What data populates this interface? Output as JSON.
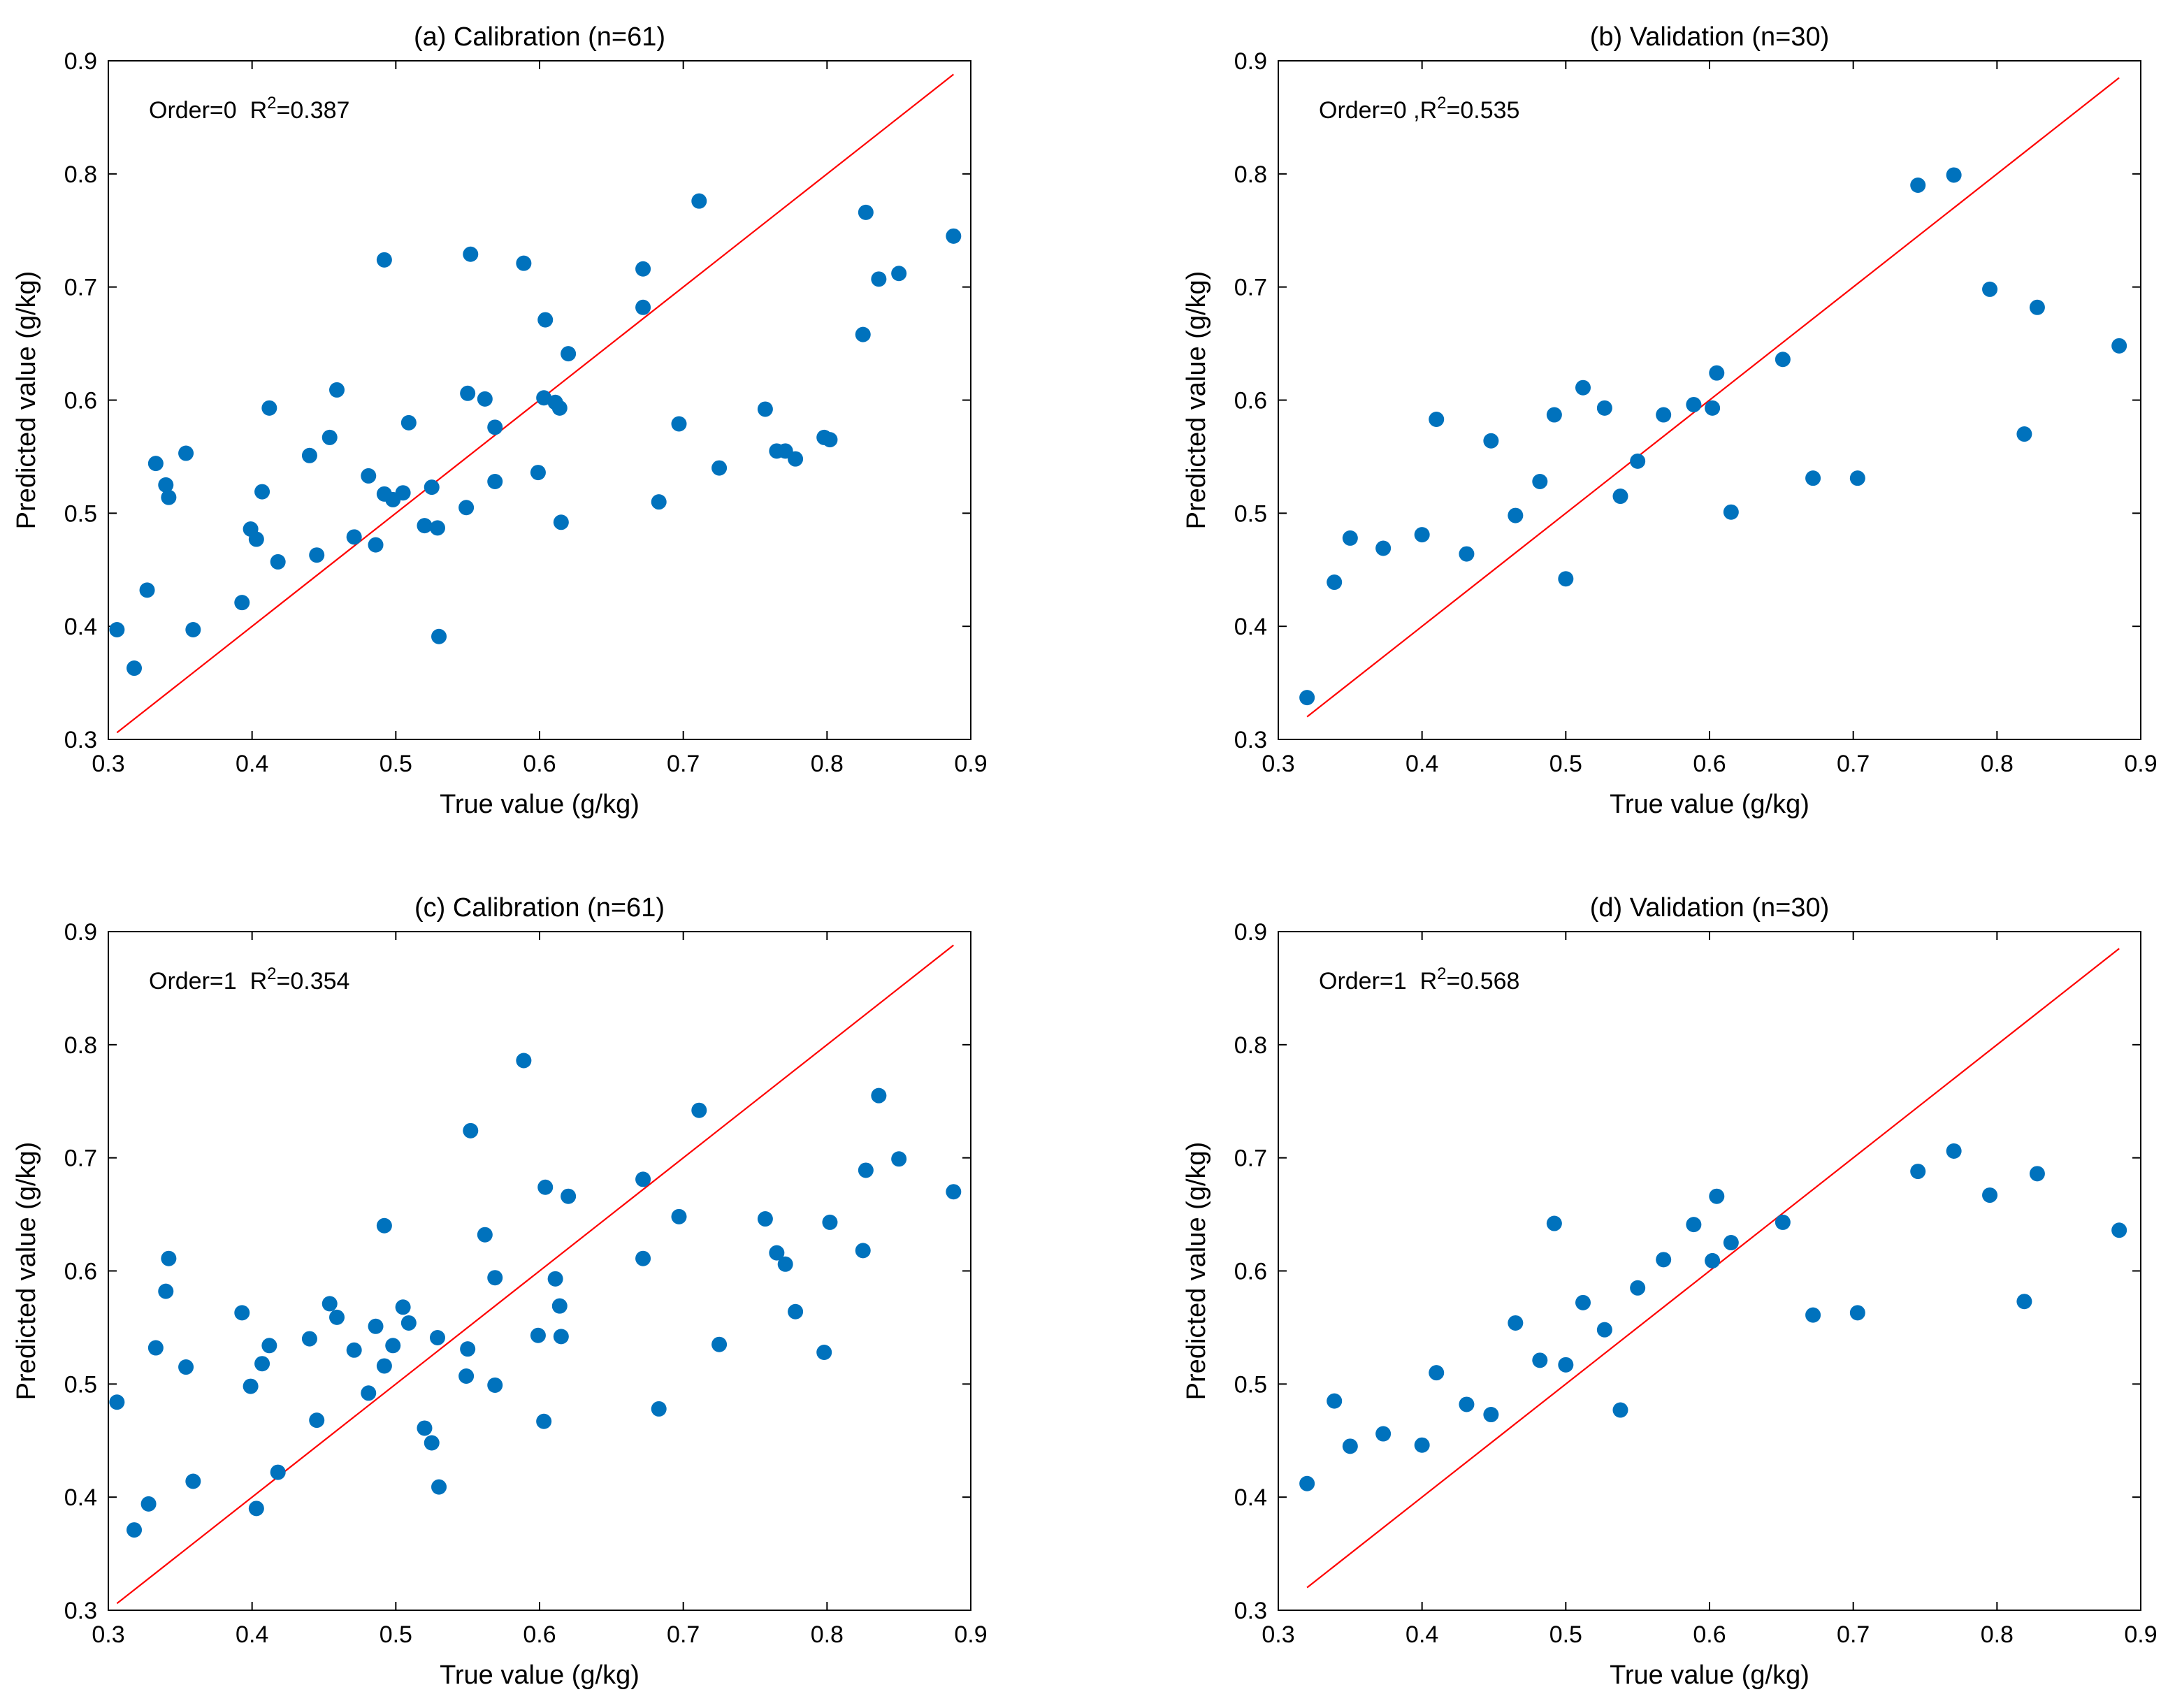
{
  "colors": {
    "points": "#0072BD",
    "fit_line": "#FF0000",
    "axes": "#000000"
  },
  "chart_data": [
    {
      "type": "scatter",
      "title": "(a) Calibration (n=61)",
      "xlabel": "True value (g/kg)",
      "ylabel": "Predicted value (g/kg)",
      "annotation": {
        "order": "Order=0",
        "r2_prefix": "R",
        "r2_sup": "2",
        "r2_value": "=0.387",
        "sep": "  "
      },
      "xlim": [
        0.3,
        0.9
      ],
      "ylim": [
        0.3,
        0.9
      ],
      "xticks": [
        "0.3",
        "0.4",
        "0.5",
        "0.6",
        "0.7",
        "0.8",
        "0.9"
      ],
      "yticks": [
        "0.3",
        "0.4",
        "0.5",
        "0.6",
        "0.7",
        "0.8",
        "0.9"
      ],
      "line": {
        "x": [
          0.306,
          0.888
        ],
        "y": [
          0.306,
          0.888
        ]
      },
      "points": [
        [
          0.306,
          0.397
        ],
        [
          0.318,
          0.363
        ],
        [
          0.327,
          0.432
        ],
        [
          0.333,
          0.544
        ],
        [
          0.34,
          0.525
        ],
        [
          0.342,
          0.514
        ],
        [
          0.354,
          0.553
        ],
        [
          0.359,
          0.397
        ],
        [
          0.393,
          0.421
        ],
        [
          0.399,
          0.486
        ],
        [
          0.403,
          0.477
        ],
        [
          0.407,
          0.519
        ],
        [
          0.412,
          0.593
        ],
        [
          0.418,
          0.457
        ],
        [
          0.44,
          0.551
        ],
        [
          0.445,
          0.463
        ],
        [
          0.454,
          0.567
        ],
        [
          0.459,
          0.609
        ],
        [
          0.471,
          0.479
        ],
        [
          0.481,
          0.533
        ],
        [
          0.486,
          0.472
        ],
        [
          0.492,
          0.724
        ],
        [
          0.492,
          0.517
        ],
        [
          0.498,
          0.512
        ],
        [
          0.505,
          0.518
        ],
        [
          0.509,
          0.58
        ],
        [
          0.52,
          0.489
        ],
        [
          0.525,
          0.523
        ],
        [
          0.529,
          0.487
        ],
        [
          0.53,
          0.391
        ],
        [
          0.549,
          0.505
        ],
        [
          0.55,
          0.606
        ],
        [
          0.552,
          0.729
        ],
        [
          0.562,
          0.601
        ],
        [
          0.569,
          0.576
        ],
        [
          0.569,
          0.528
        ],
        [
          0.589,
          0.721
        ],
        [
          0.599,
          0.536
        ],
        [
          0.603,
          0.602
        ],
        [
          0.604,
          0.671
        ],
        [
          0.611,
          0.598
        ],
        [
          0.614,
          0.593
        ],
        [
          0.615,
          0.492
        ],
        [
          0.62,
          0.641
        ],
        [
          0.672,
          0.716
        ],
        [
          0.672,
          0.682
        ],
        [
          0.683,
          0.51
        ],
        [
          0.697,
          0.579
        ],
        [
          0.711,
          0.776
        ],
        [
          0.725,
          0.54
        ],
        [
          0.757,
          0.592
        ],
        [
          0.765,
          0.555
        ],
        [
          0.771,
          0.555
        ],
        [
          0.778,
          0.548
        ],
        [
          0.798,
          0.567
        ],
        [
          0.802,
          0.565
        ],
        [
          0.825,
          0.658
        ],
        [
          0.827,
          0.766
        ],
        [
          0.836,
          0.707
        ],
        [
          0.85,
          0.712
        ],
        [
          0.888,
          0.745
        ]
      ]
    },
    {
      "type": "scatter",
      "title": "(b) Validation (n=30)",
      "xlabel": "True value (g/kg)",
      "ylabel": "Predicted value (g/kg)",
      "annotation": {
        "order": "Order=0 ,",
        "r2_prefix": "R",
        "r2_sup": "2",
        "r2_value": "=0.535",
        "sep": ""
      },
      "xlim": [
        0.3,
        0.9
      ],
      "ylim": [
        0.3,
        0.9
      ],
      "xticks": [
        "0.3",
        "0.4",
        "0.5",
        "0.6",
        "0.7",
        "0.8",
        "0.9"
      ],
      "yticks": [
        "0.3",
        "0.4",
        "0.5",
        "0.6",
        "0.7",
        "0.8",
        "0.9"
      ],
      "line": {
        "x": [
          0.32,
          0.885
        ],
        "y": [
          0.32,
          0.885
        ]
      },
      "points": [
        [
          0.32,
          0.337
        ],
        [
          0.339,
          0.439
        ],
        [
          0.35,
          0.478
        ],
        [
          0.373,
          0.469
        ],
        [
          0.4,
          0.481
        ],
        [
          0.41,
          0.583
        ],
        [
          0.431,
          0.464
        ],
        [
          0.448,
          0.564
        ],
        [
          0.465,
          0.498
        ],
        [
          0.482,
          0.528
        ],
        [
          0.492,
          0.587
        ],
        [
          0.5,
          0.442
        ],
        [
          0.512,
          0.611
        ],
        [
          0.527,
          0.593
        ],
        [
          0.538,
          0.515
        ],
        [
          0.55,
          0.546
        ],
        [
          0.568,
          0.587
        ],
        [
          0.589,
          0.596
        ],
        [
          0.602,
          0.593
        ],
        [
          0.605,
          0.624
        ],
        [
          0.615,
          0.501
        ],
        [
          0.651,
          0.636
        ],
        [
          0.672,
          0.531
        ],
        [
          0.703,
          0.531
        ],
        [
          0.745,
          0.79
        ],
        [
          0.77,
          0.799
        ],
        [
          0.795,
          0.698
        ],
        [
          0.819,
          0.57
        ],
        [
          0.828,
          0.682
        ],
        [
          0.885,
          0.648
        ]
      ]
    },
    {
      "type": "scatter",
      "title": "(c) Calibration (n=61)",
      "xlabel": "True value (g/kg)",
      "ylabel": "Predicted value (g/kg)",
      "annotation": {
        "order": "Order=1",
        "r2_prefix": "R",
        "r2_sup": "2",
        "r2_value": "=0.354",
        "sep": "  "
      },
      "xlim": [
        0.3,
        0.9
      ],
      "ylim": [
        0.3,
        0.9
      ],
      "xticks": [
        "0.3",
        "0.4",
        "0.5",
        "0.6",
        "0.7",
        "0.8",
        "0.9"
      ],
      "yticks": [
        "0.3",
        "0.4",
        "0.5",
        "0.6",
        "0.7",
        "0.8",
        "0.9"
      ],
      "line": {
        "x": [
          0.306,
          0.888
        ],
        "y": [
          0.306,
          0.888
        ]
      },
      "points": [
        [
          0.306,
          0.484
        ],
        [
          0.318,
          0.371
        ],
        [
          0.328,
          0.394
        ],
        [
          0.333,
          0.532
        ],
        [
          0.34,
          0.582
        ],
        [
          0.342,
          0.611
        ],
        [
          0.354,
          0.515
        ],
        [
          0.359,
          0.414
        ],
        [
          0.393,
          0.563
        ],
        [
          0.399,
          0.498
        ],
        [
          0.403,
          0.39
        ],
        [
          0.407,
          0.518
        ],
        [
          0.412,
          0.534
        ],
        [
          0.418,
          0.422
        ],
        [
          0.44,
          0.54
        ],
        [
          0.445,
          0.468
        ],
        [
          0.454,
          0.571
        ],
        [
          0.459,
          0.559
        ],
        [
          0.471,
          0.53
        ],
        [
          0.481,
          0.492
        ],
        [
          0.486,
          0.551
        ],
        [
          0.492,
          0.64
        ],
        [
          0.492,
          0.516
        ],
        [
          0.498,
          0.534
        ],
        [
          0.505,
          0.568
        ],
        [
          0.509,
          0.554
        ],
        [
          0.52,
          0.461
        ],
        [
          0.525,
          0.448
        ],
        [
          0.529,
          0.541
        ],
        [
          0.53,
          0.409
        ],
        [
          0.549,
          0.507
        ],
        [
          0.55,
          0.531
        ],
        [
          0.552,
          0.724
        ],
        [
          0.562,
          0.632
        ],
        [
          0.569,
          0.594
        ],
        [
          0.569,
          0.499
        ],
        [
          0.589,
          0.786
        ],
        [
          0.599,
          0.543
        ],
        [
          0.603,
          0.467
        ],
        [
          0.604,
          0.674
        ],
        [
          0.611,
          0.593
        ],
        [
          0.614,
          0.569
        ],
        [
          0.615,
          0.542
        ],
        [
          0.62,
          0.666
        ],
        [
          0.672,
          0.681
        ],
        [
          0.672,
          0.611
        ],
        [
          0.683,
          0.478
        ],
        [
          0.697,
          0.648
        ],
        [
          0.711,
          0.742
        ],
        [
          0.725,
          0.535
        ],
        [
          0.757,
          0.646
        ],
        [
          0.765,
          0.616
        ],
        [
          0.771,
          0.606
        ],
        [
          0.778,
          0.564
        ],
        [
          0.798,
          0.528
        ],
        [
          0.802,
          0.643
        ],
        [
          0.825,
          0.618
        ],
        [
          0.827,
          0.689
        ],
        [
          0.836,
          0.755
        ],
        [
          0.85,
          0.699
        ],
        [
          0.888,
          0.67
        ]
      ]
    },
    {
      "type": "scatter",
      "title": "(d) Validation (n=30)",
      "xlabel": "True value (g/kg)",
      "ylabel": "Predicted value (g/kg)",
      "annotation": {
        "order": "Order=1",
        "r2_prefix": "R",
        "r2_sup": "2",
        "r2_value": "=0.568",
        "sep": "  "
      },
      "xlim": [
        0.3,
        0.9
      ],
      "ylim": [
        0.3,
        0.9
      ],
      "xticks": [
        "0.3",
        "0.4",
        "0.5",
        "0.6",
        "0.7",
        "0.8",
        "0.9"
      ],
      "yticks": [
        "0.3",
        "0.4",
        "0.5",
        "0.6",
        "0.7",
        "0.8",
        "0.9"
      ],
      "line": {
        "x": [
          0.32,
          0.885
        ],
        "y": [
          0.32,
          0.885
        ]
      },
      "points": [
        [
          0.32,
          0.412
        ],
        [
          0.339,
          0.485
        ],
        [
          0.35,
          0.445
        ],
        [
          0.373,
          0.456
        ],
        [
          0.4,
          0.446
        ],
        [
          0.41,
          0.51
        ],
        [
          0.431,
          0.482
        ],
        [
          0.448,
          0.473
        ],
        [
          0.465,
          0.554
        ],
        [
          0.482,
          0.521
        ],
        [
          0.492,
          0.642
        ],
        [
          0.5,
          0.517
        ],
        [
          0.512,
          0.572
        ],
        [
          0.527,
          0.548
        ],
        [
          0.538,
          0.477
        ],
        [
          0.55,
          0.585
        ],
        [
          0.568,
          0.61
        ],
        [
          0.589,
          0.641
        ],
        [
          0.602,
          0.609
        ],
        [
          0.605,
          0.666
        ],
        [
          0.615,
          0.625
        ],
        [
          0.651,
          0.643
        ],
        [
          0.672,
          0.561
        ],
        [
          0.703,
          0.563
        ],
        [
          0.745,
          0.688
        ],
        [
          0.77,
          0.706
        ],
        [
          0.795,
          0.667
        ],
        [
          0.819,
          0.573
        ],
        [
          0.828,
          0.686
        ],
        [
          0.885,
          0.636
        ]
      ]
    }
  ]
}
